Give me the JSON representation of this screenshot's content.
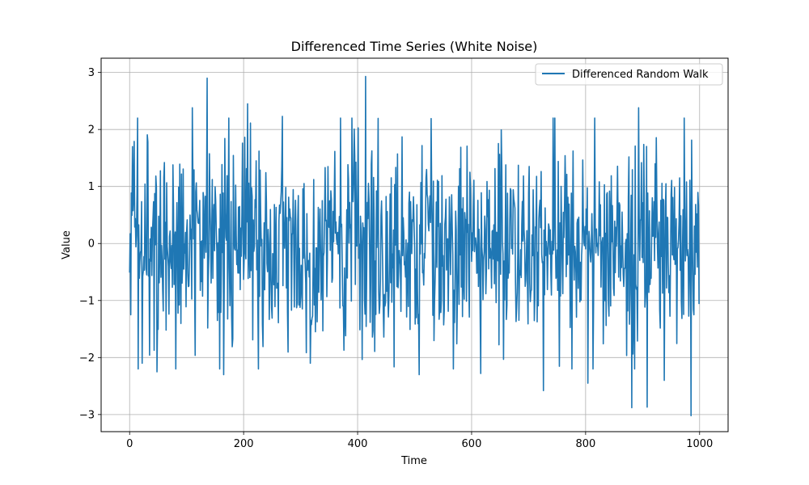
{
  "chart_data": {
    "type": "line",
    "title": "Differenced Time Series (White Noise)",
    "xlabel": "Time",
    "ylabel": "Value",
    "xlim": [
      -50,
      1050
    ],
    "ylim": [
      -3.3,
      3.25
    ],
    "xticks": [
      0,
      200,
      400,
      600,
      800,
      1000
    ],
    "yticks": [
      -3,
      -2,
      -1,
      0,
      1,
      2,
      3
    ],
    "xtick_labels": [
      "0",
      "200",
      "400",
      "600",
      "800",
      "1000"
    ],
    "ytick_labels": [
      "−3",
      "−2",
      "−1",
      "0",
      "1",
      "2",
      "3"
    ],
    "grid": true,
    "legend_placement": "top-right",
    "series": [
      {
        "name": "Differenced Random Walk",
        "color": "#1f77b4",
        "noise_seed": 42,
        "n_points": 1000,
        "x_start": 0,
        "x_step": 1,
        "values_note_omitted": true,
        "anchor_points": [
          {
            "x": 0,
            "y": -0.5
          },
          {
            "x": 2,
            "y": -1.25
          },
          {
            "x": 5,
            "y": 1.7
          },
          {
            "x": 14,
            "y": 2.2
          },
          {
            "x": 22,
            "y": -2.1
          },
          {
            "x": 48,
            "y": -2.25
          },
          {
            "x": 110,
            "y": 2.38
          },
          {
            "x": 136,
            "y": 2.9
          },
          {
            "x": 165,
            "y": -2.3
          },
          {
            "x": 207,
            "y": 2.45
          },
          {
            "x": 226,
            "y": -2.2
          },
          {
            "x": 268,
            "y": 2.23
          },
          {
            "x": 317,
            "y": -2.1
          },
          {
            "x": 414,
            "y": 2.93
          },
          {
            "x": 508,
            "y": -2.3
          },
          {
            "x": 616,
            "y": -2.28
          },
          {
            "x": 726,
            "y": -2.58
          },
          {
            "x": 804,
            "y": -2.45
          },
          {
            "x": 881,
            "y": -2.88
          },
          {
            "x": 893,
            "y": 2.38
          },
          {
            "x": 908,
            "y": -2.87
          },
          {
            "x": 938,
            "y": -2.4
          },
          {
            "x": 985,
            "y": -3.02
          },
          {
            "x": 999,
            "y": -1.05
          }
        ]
      }
    ]
  }
}
